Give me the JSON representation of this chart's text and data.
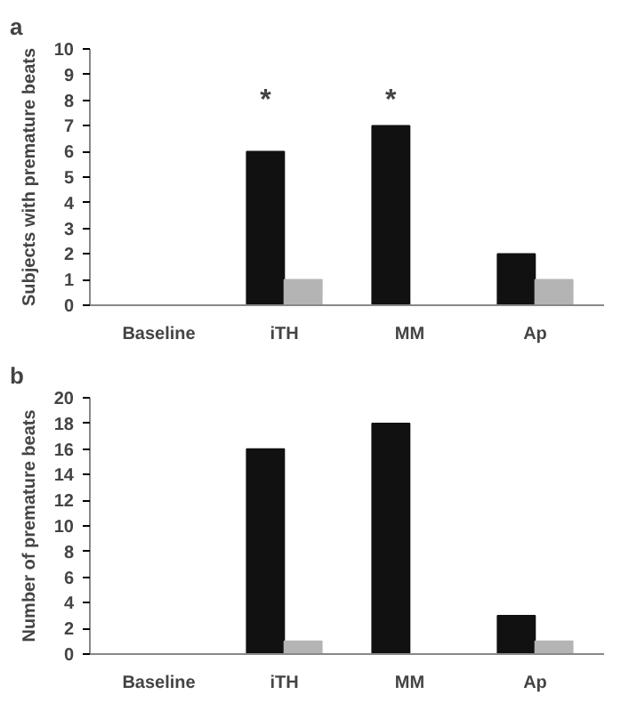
{
  "chart_data": [
    {
      "type": "bar",
      "title": "a",
      "ylabel": "Subjects with premature beats",
      "categories": [
        "Baseline",
        "iTH",
        "MM",
        "Ap"
      ],
      "ylim": [
        0,
        10
      ],
      "yticks": [
        0,
        1,
        2,
        3,
        4,
        5,
        6,
        7,
        8,
        9,
        10
      ],
      "grid": false,
      "series": [
        {
          "color": "#111111",
          "values": [
            null,
            6,
            7,
            2
          ]
        },
        {
          "color": "#b4b4b4",
          "values": [
            null,
            1,
            null,
            1
          ]
        }
      ],
      "annotations": [
        "*",
        "*"
      ]
    },
    {
      "type": "bar",
      "title": "b",
      "ylabel": "Number of premature beats",
      "categories": [
        "Baseline",
        "iTH",
        "MM",
        "Ap"
      ],
      "ylim": [
        0,
        20
      ],
      "yticks": [
        0,
        2,
        4,
        6,
        8,
        10,
        12,
        14,
        16,
        18,
        20
      ],
      "grid": false,
      "series": [
        {
          "color": "#111111",
          "values": [
            null,
            16,
            18,
            3
          ]
        },
        {
          "color": "#b4b4b4",
          "values": [
            null,
            1,
            null,
            1
          ]
        }
      ]
    }
  ]
}
